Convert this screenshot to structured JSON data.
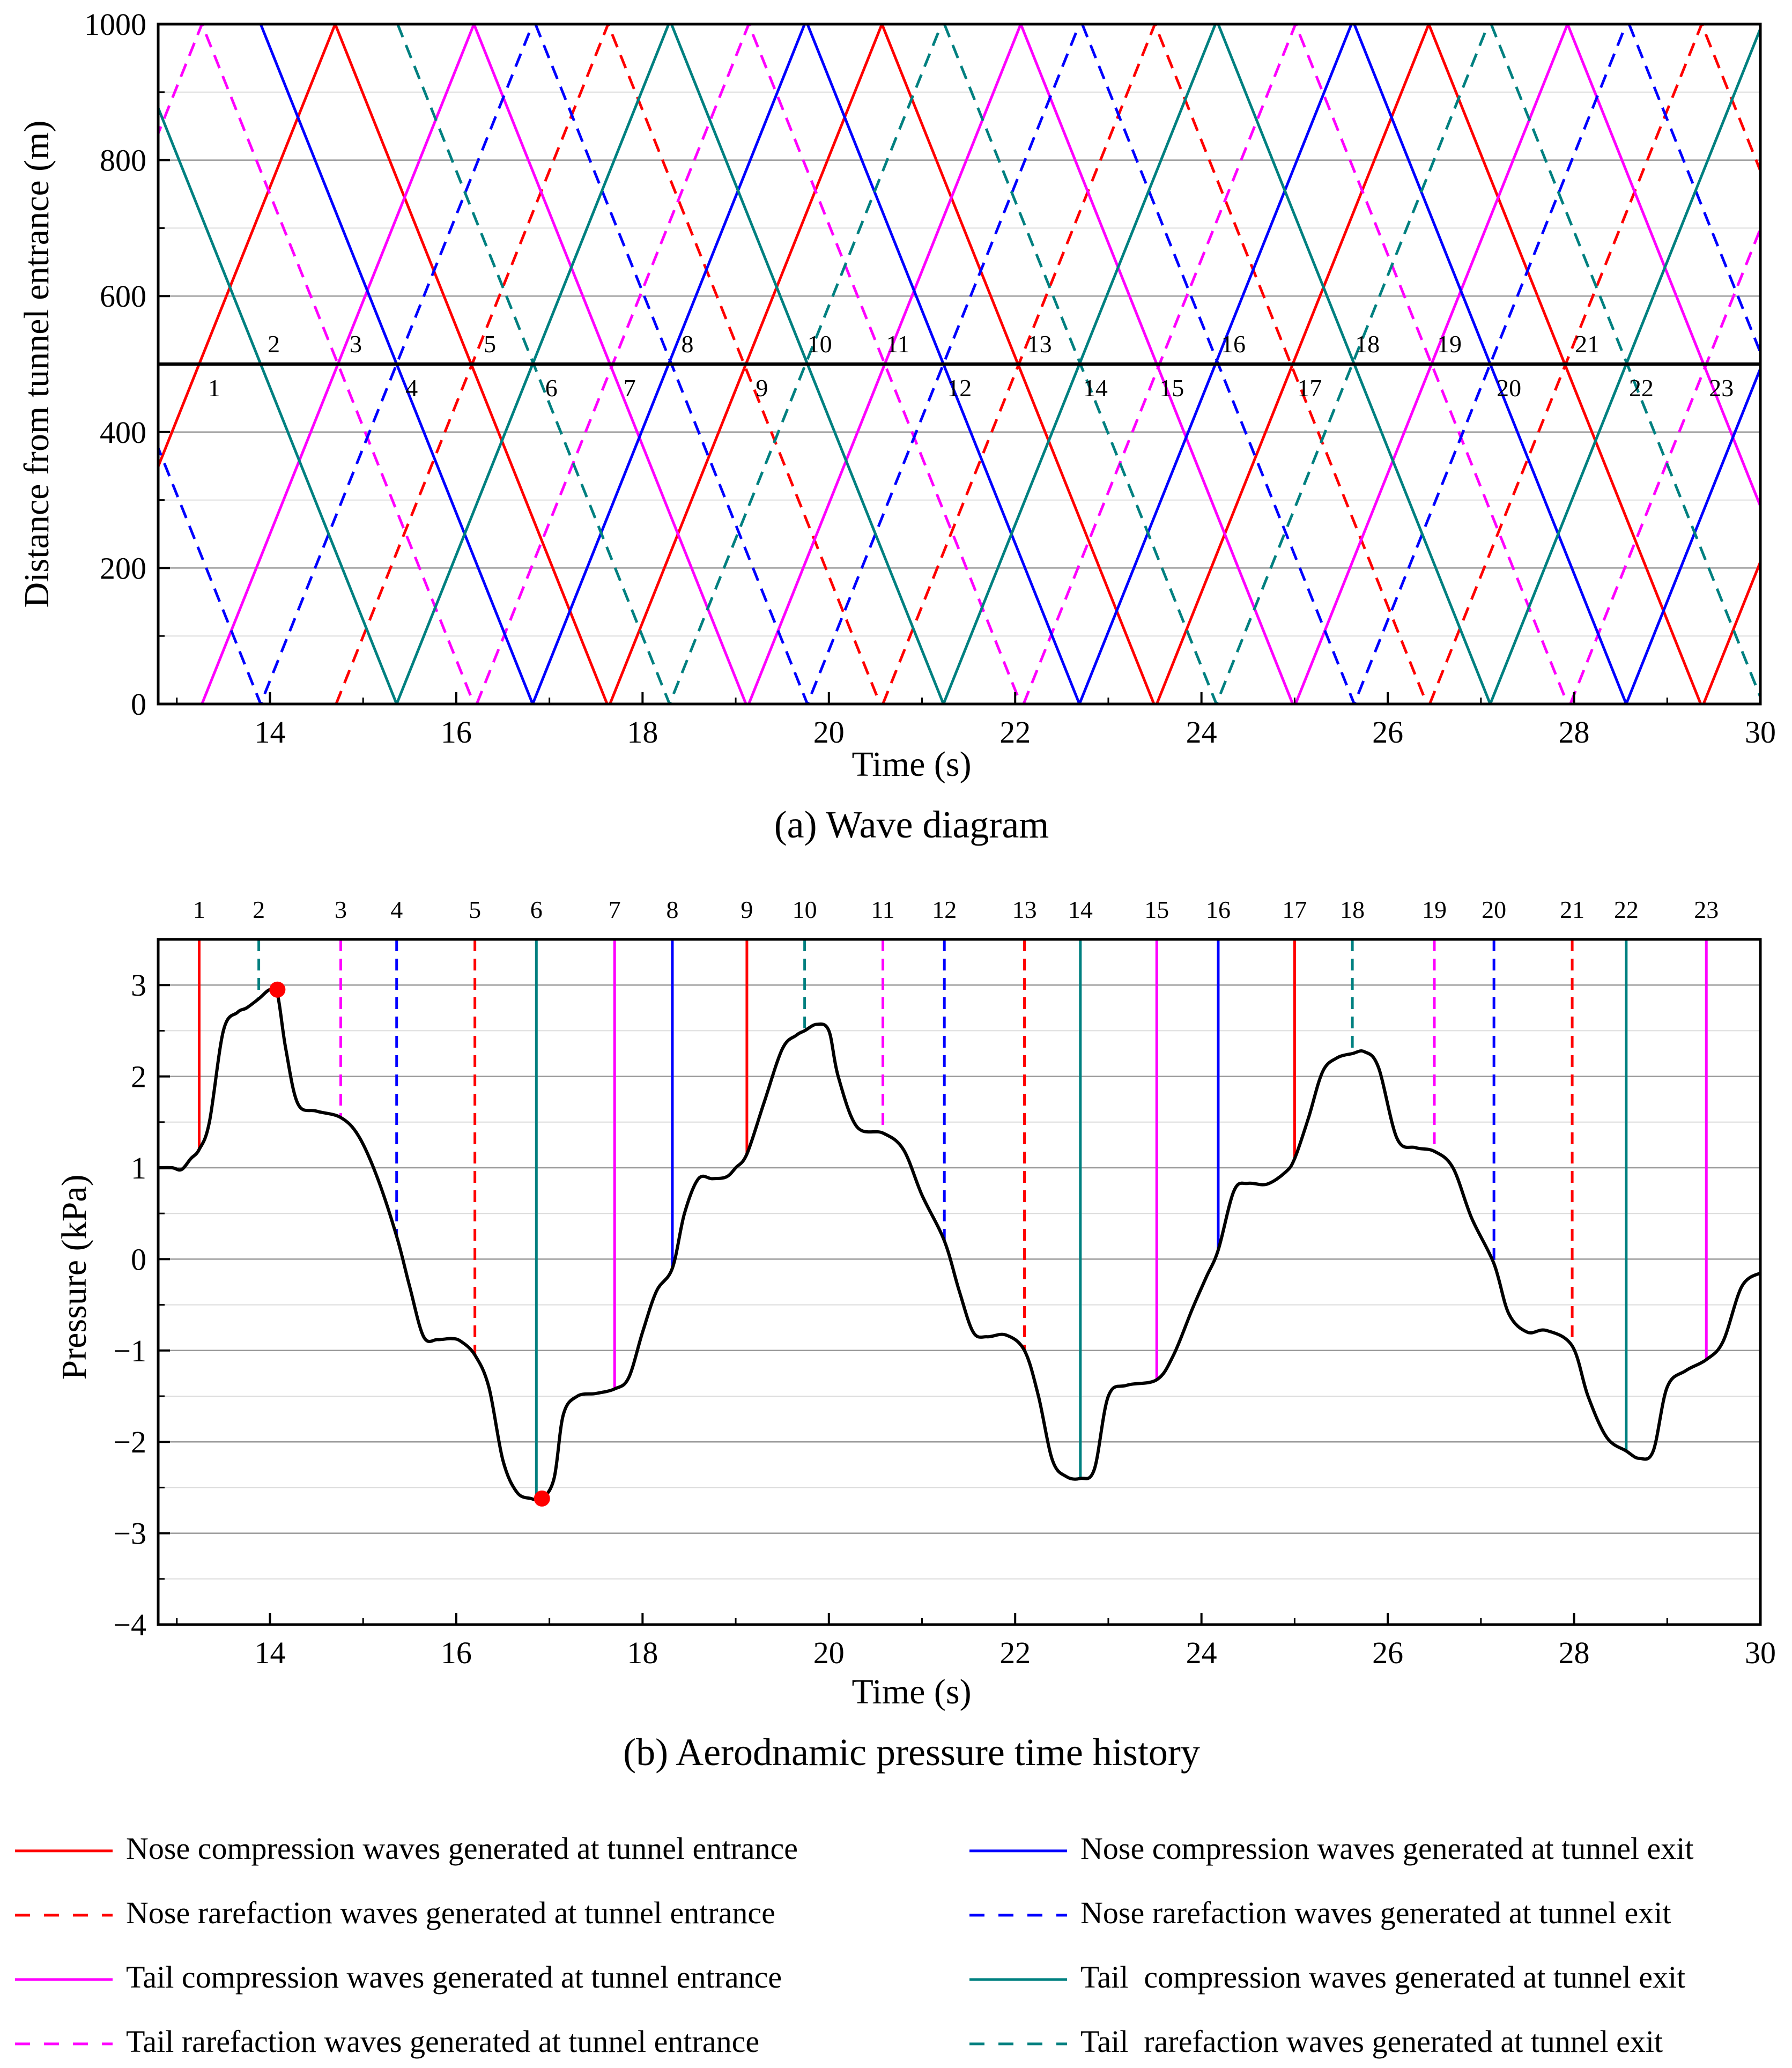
{
  "colors": {
    "nose_entrance": "#ff0000",
    "nose_exit": "#0000ff",
    "tail_entrance": "#ff00ff",
    "tail_exit": "#008080",
    "curve": "#000000",
    "marker": "#ff0000"
  },
  "chart_data": [
    {
      "type": "line",
      "title": "(a) Wave diagram",
      "xlabel": "Time (s)",
      "ylabel": "Distance from tunnel entrance (m)",
      "xlim": [
        12.8,
        30
      ],
      "ylim": [
        0,
        1000
      ],
      "xticks": [
        14,
        16,
        18,
        20,
        22,
        24,
        26,
        28,
        30
      ],
      "yticks": [
        0,
        200,
        400,
        600,
        800,
        1000
      ],
      "tunnel_midpoint": 500,
      "wave_travel_time": 2.92,
      "families": [
        {
          "name": "nose_compression_entrance",
          "color_key": "nose_entrance",
          "dashed": false,
          "start_times": [
            11.78,
            17.65,
            23.52,
            29.39
          ]
        },
        {
          "name": "nose_rarefaction_entrance",
          "color_key": "nose_entrance",
          "dashed": true,
          "start_times": [
            14.71,
            20.58,
            26.45
          ]
        },
        {
          "name": "tail_compression_entrance",
          "color_key": "tail_entrance",
          "dashed": false,
          "start_times": [
            13.27,
            19.14,
            25.01
          ]
        },
        {
          "name": "tail_rarefaction_entrance",
          "color_key": "tail_entrance",
          "dashed": true,
          "start_times": [
            10.35,
            16.22,
            22.09,
            27.96
          ]
        },
        {
          "name": "nose_compression_exit",
          "color_key": "nose_exit",
          "dashed": false,
          "start_times": [
            13.9,
            19.77,
            25.64
          ]
        },
        {
          "name": "nose_rarefaction_exit",
          "color_key": "nose_exit",
          "dashed": true,
          "start_times": [
            10.98,
            16.85,
            22.72,
            28.59
          ]
        },
        {
          "name": "tail_compression_exit",
          "color_key": "tail_exit",
          "dashed": false,
          "start_times": [
            12.44,
            18.31,
            24.18
          ]
        },
        {
          "name": "tail_rarefaction_exit",
          "color_key": "tail_exit",
          "dashed": true,
          "start_times": [
            15.37,
            21.24,
            27.11
          ]
        }
      ],
      "events": [
        {
          "n": "1",
          "t": 13.24,
          "side": "below"
        },
        {
          "n": "2",
          "t": 13.88,
          "side": "above"
        },
        {
          "n": "3",
          "t": 14.76,
          "side": "above"
        },
        {
          "n": "4",
          "t": 15.36,
          "side": "below"
        },
        {
          "n": "5",
          "t": 16.2,
          "side": "above"
        },
        {
          "n": "6",
          "t": 16.86,
          "side": "below"
        },
        {
          "n": "7",
          "t": 17.7,
          "side": "below"
        },
        {
          "n": "8",
          "t": 18.32,
          "side": "above"
        },
        {
          "n": "9",
          "t": 19.12,
          "side": "below"
        },
        {
          "n": "10",
          "t": 19.74,
          "side": "above"
        },
        {
          "n": "11",
          "t": 20.58,
          "side": "above"
        },
        {
          "n": "12",
          "t": 21.24,
          "side": "below"
        },
        {
          "n": "13",
          "t": 22.1,
          "side": "above"
        },
        {
          "n": "14",
          "t": 22.7,
          "side": "below"
        },
        {
          "n": "15",
          "t": 23.52,
          "side": "below"
        },
        {
          "n": "16",
          "t": 24.18,
          "side": "above"
        },
        {
          "n": "17",
          "t": 25.0,
          "side": "below"
        },
        {
          "n": "18",
          "t": 25.62,
          "side": "above"
        },
        {
          "n": "19",
          "t": 26.5,
          "side": "above"
        },
        {
          "n": "20",
          "t": 27.14,
          "side": "below"
        },
        {
          "n": "21",
          "t": 27.98,
          "side": "above"
        },
        {
          "n": "22",
          "t": 28.56,
          "side": "below"
        },
        {
          "n": "23",
          "t": 29.42,
          "side": "below"
        }
      ]
    },
    {
      "type": "line",
      "title": "(b) Aerodnamic pressure time history",
      "xlabel": "Time (s)",
      "ylabel": "Pressure (kPa)",
      "xlim": [
        12.8,
        30
      ],
      "ylim": [
        -4,
        3.5
      ],
      "xticks": [
        14,
        16,
        18,
        20,
        22,
        24,
        26,
        28,
        30
      ],
      "yticks": [
        -4,
        -3,
        -2,
        -1,
        0,
        1,
        2,
        3
      ],
      "ytick_labels": [
        "−4",
        "−3",
        "−2",
        "−1",
        "0",
        "1",
        "2",
        "3"
      ],
      "pressure_curve": {
        "t": [
          12.8,
          12.95,
          13.05,
          13.15,
          13.24,
          13.35,
          13.5,
          13.65,
          13.75,
          13.88,
          14.0,
          14.08,
          14.17,
          14.3,
          14.5,
          14.76,
          14.95,
          15.15,
          15.36,
          15.5,
          15.65,
          15.8,
          15.95,
          16.05,
          16.2,
          16.35,
          16.5,
          16.65,
          16.8,
          16.92,
          17.05,
          17.15,
          17.3,
          17.5,
          17.7,
          17.85,
          18.0,
          18.15,
          18.32,
          18.45,
          18.6,
          18.75,
          18.9,
          19.0,
          19.12,
          19.3,
          19.5,
          19.65,
          19.74,
          19.87,
          20.0,
          20.1,
          20.3,
          20.58,
          20.8,
          21.0,
          21.24,
          21.4,
          21.55,
          21.7,
          21.9,
          22.1,
          22.25,
          22.4,
          22.55,
          22.7,
          22.85,
          23.0,
          23.2,
          23.52,
          23.7,
          23.9,
          24.05,
          24.18,
          24.35,
          24.5,
          24.7,
          24.9,
          25.0,
          25.15,
          25.3,
          25.45,
          25.62,
          25.75,
          25.9,
          26.1,
          26.3,
          26.5,
          26.7,
          26.9,
          27.14,
          27.3,
          27.5,
          27.7,
          27.98,
          28.15,
          28.35,
          28.56,
          28.7,
          28.85,
          29.0,
          29.2,
          29.42,
          29.6,
          29.8,
          30.0
        ],
        "p": [
          1.0,
          1.0,
          0.98,
          1.1,
          1.2,
          1.5,
          2.5,
          2.7,
          2.75,
          2.85,
          2.95,
          2.9,
          2.3,
          1.7,
          1.62,
          1.55,
          1.35,
          0.9,
          0.25,
          -0.3,
          -0.85,
          -0.88,
          -0.87,
          -0.9,
          -1.05,
          -1.4,
          -2.2,
          -2.55,
          -2.62,
          -2.62,
          -2.4,
          -1.7,
          -1.5,
          -1.47,
          -1.42,
          -1.3,
          -0.8,
          -0.35,
          -0.1,
          0.5,
          0.88,
          0.88,
          0.9,
          1.0,
          1.15,
          1.7,
          2.3,
          2.45,
          2.5,
          2.57,
          2.5,
          2.0,
          1.45,
          1.38,
          1.2,
          0.7,
          0.2,
          -0.35,
          -0.8,
          -0.85,
          -0.83,
          -1.0,
          -1.5,
          -2.2,
          -2.38,
          -2.4,
          -2.3,
          -1.5,
          -1.38,
          -1.32,
          -1.05,
          -0.55,
          -0.2,
          0.1,
          0.75,
          0.83,
          0.82,
          0.95,
          1.1,
          1.55,
          2.05,
          2.2,
          2.25,
          2.27,
          2.1,
          1.32,
          1.22,
          1.18,
          1.0,
          0.45,
          -0.05,
          -0.6,
          -0.8,
          -0.78,
          -0.95,
          -1.5,
          -1.95,
          -2.1,
          -2.18,
          -2.1,
          -1.4,
          -1.22,
          -1.1,
          -0.9,
          -0.3,
          -0.15
        ]
      },
      "markers": [
        {
          "t": 14.08,
          "p": 2.95
        },
        {
          "t": 16.92,
          "p": -2.62
        }
      ],
      "event_lines": [
        {
          "n": "1",
          "t": 13.24,
          "color_key": "nose_entrance",
          "dashed": false
        },
        {
          "n": "2",
          "t": 13.88,
          "color_key": "tail_exit",
          "dashed": true
        },
        {
          "n": "3",
          "t": 14.76,
          "color_key": "tail_entrance",
          "dashed": true
        },
        {
          "n": "4",
          "t": 15.36,
          "color_key": "nose_exit",
          "dashed": true
        },
        {
          "n": "5",
          "t": 16.2,
          "color_key": "nose_entrance",
          "dashed": true
        },
        {
          "n": "6",
          "t": 16.86,
          "color_key": "tail_exit",
          "dashed": false
        },
        {
          "n": "7",
          "t": 17.7,
          "color_key": "tail_entrance",
          "dashed": false
        },
        {
          "n": "8",
          "t": 18.32,
          "color_key": "nose_exit",
          "dashed": false
        },
        {
          "n": "9",
          "t": 19.12,
          "color_key": "nose_entrance",
          "dashed": false
        },
        {
          "n": "10",
          "t": 19.74,
          "color_key": "tail_exit",
          "dashed": true
        },
        {
          "n": "11",
          "t": 20.58,
          "color_key": "tail_entrance",
          "dashed": true
        },
        {
          "n": "12",
          "t": 21.24,
          "color_key": "nose_exit",
          "dashed": true
        },
        {
          "n": "13",
          "t": 22.1,
          "color_key": "nose_entrance",
          "dashed": true
        },
        {
          "n": "14",
          "t": 22.7,
          "color_key": "tail_exit",
          "dashed": false
        },
        {
          "n": "15",
          "t": 23.52,
          "color_key": "tail_entrance",
          "dashed": false
        },
        {
          "n": "16",
          "t": 24.18,
          "color_key": "nose_exit",
          "dashed": false
        },
        {
          "n": "17",
          "t": 25.0,
          "color_key": "nose_entrance",
          "dashed": false
        },
        {
          "n": "18",
          "t": 25.62,
          "color_key": "tail_exit",
          "dashed": true
        },
        {
          "n": "19",
          "t": 26.5,
          "color_key": "tail_entrance",
          "dashed": true
        },
        {
          "n": "20",
          "t": 27.14,
          "color_key": "nose_exit",
          "dashed": true
        },
        {
          "n": "21",
          "t": 27.98,
          "color_key": "nose_entrance",
          "dashed": true
        },
        {
          "n": "22",
          "t": 28.56,
          "color_key": "tail_exit",
          "dashed": false
        },
        {
          "n": "23",
          "t": 29.42,
          "color_key": "tail_entrance",
          "dashed": false
        }
      ]
    }
  ],
  "legend": [
    {
      "label": "Nose compression waves generated at tunnel entrance",
      "color_key": "nose_entrance",
      "dashed": false,
      "column": 0,
      "row": 0
    },
    {
      "label": "Nose rarefaction waves generated at tunnel entrance",
      "color_key": "nose_entrance",
      "dashed": true,
      "column": 0,
      "row": 1
    },
    {
      "label": "Tail compression waves generated at tunnel entrance",
      "color_key": "tail_entrance",
      "dashed": false,
      "column": 0,
      "row": 2
    },
    {
      "label": "Tail rarefaction waves generated at tunnel entrance",
      "color_key": "tail_entrance",
      "dashed": true,
      "column": 0,
      "row": 3
    },
    {
      "label": "Nose compression waves generated at tunnel exit",
      "color_key": "nose_exit",
      "dashed": false,
      "column": 1,
      "row": 0
    },
    {
      "label": "Nose rarefaction waves generated at tunnel exit",
      "color_key": "nose_exit",
      "dashed": true,
      "column": 1,
      "row": 1
    },
    {
      "label": "Tail  compression waves generated at tunnel exit",
      "color_key": "tail_exit",
      "dashed": false,
      "column": 1,
      "row": 2
    },
    {
      "label": "Tail  rarefaction waves generated at tunnel exit",
      "color_key": "tail_exit",
      "dashed": true,
      "column": 1,
      "row": 3
    }
  ]
}
